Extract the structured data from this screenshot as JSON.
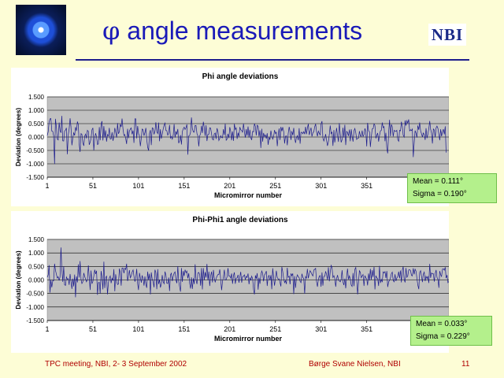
{
  "slide": {
    "title_symbol": "φ",
    "title_text": " angle measurements",
    "logo_text": "NBI",
    "footer_left": "TPC meeting, NBI, 2- 3 September 2002",
    "footer_center": "Børge Svane Nielsen, NBI",
    "footer_right": "11"
  },
  "colors": {
    "background": "#fdfdd6",
    "title": "#1a1ab8",
    "plot_area": "#c0c0c0",
    "series_line": "#1a1a8c",
    "stats_box": "#b4f08c",
    "footer_text": "#b00000"
  },
  "chart_data": [
    {
      "type": "line",
      "title": "Phi angle deviations",
      "xlabel": "Micromirror number",
      "ylabel": "Deviation (degrees)",
      "ylim": [
        -1.5,
        1.5
      ],
      "yticks": [
        1.5,
        1.0,
        0.5,
        0.0,
        -0.5,
        -1.0,
        -1.5
      ],
      "ytick_labels": [
        "1.500",
        "1.000",
        "0.500",
        "0.000",
        "-0.500",
        "-1.000",
        "-1.500"
      ],
      "xticks": [
        1,
        51,
        101,
        151,
        201,
        251,
        301,
        351
      ],
      "xtick_labels": [
        "1",
        "51",
        "101",
        "151",
        "201",
        "251",
        "301",
        "351"
      ],
      "xlim": [
        1,
        441
      ],
      "grid": true,
      "stats": [
        "Mean = 0.111°",
        "Sigma = 0.190°"
      ],
      "series": [
        {
          "values": [
            0.05,
            0.2,
            0.55,
            0.68,
            0.69,
            0.22,
            0.21,
            0.05,
            -1.01,
            0.68,
            0.38,
            -0.08,
            -0.11,
            0.54,
            0.24,
            0.16,
            0.79,
            -0.14,
            -0.15,
            0.22,
            0.26,
            0.34,
            -0.64,
            0.09,
            0.3,
            0.7,
            0.39,
            -0.31,
            -0.02,
            0.16,
            0.06,
            0.37,
            0.23,
            0.58,
            0.47,
            -0.28,
            -0.56,
            0.13,
            0.1,
            -0.22,
            -0.33,
            0.03,
            0.11,
            -0.05,
            0.25,
            0.21,
            -0.29,
            -0.19,
            -0.06,
            0.27,
            0.34,
            -0.5,
            -0.03,
            0.14,
            0.01,
            -0.28,
            -0.26,
            0.37,
            -0.12,
            0.48,
            0.59,
            -0.13,
            0.41,
            -0.02,
            0.25,
            -0.17,
            0.09,
            0.04,
            0.34,
            -0.07,
            -0.07,
            0.18,
            -0.14,
            0.03,
            0.34,
            0.18,
            -0.02,
            0.52,
            0.12,
            0.2,
            0.48,
            0.38,
            0.69,
            0.3,
            0.06,
            0.09,
            -0.07,
            -0.26,
            0.31,
            -0.04,
            0.22,
            0.3,
            0.34,
            0.1,
            0.24,
            -0.22,
            0.68,
            0.68,
            -0.05,
            0.41,
            0.13,
            0.04,
            -0.34,
            -0.06,
            0.3,
            0.27,
            0.05,
            0.16,
            0.34,
            -0.08,
            -0.38,
            -0.51,
            0.12,
            0.26,
            -0.3,
            0.34,
            0.32,
            0.1,
            0.23,
            0.55,
            0.19,
            0.13,
            0.54,
            -0.16,
            0.29,
            -0.06,
            0.1,
            0.29,
            0.44,
            0.52,
            0.24,
            0.24,
            0.07,
            0.14,
            0.45,
            -0.04,
            0.02,
            -0.08,
            0.08,
            0.48,
            -0.02,
            0.2,
            0.11,
            0.3,
            -0.23,
            -0.14,
            0.07,
            -0.28,
            0.2,
            0.31,
            0.37,
            0.28,
            0.35,
            0.47,
            -0.66,
            0.04,
            0.06,
            0.18,
            0.73,
            0.31,
            0.19,
            0.18,
            0.43,
            0.43,
            0.13,
            0.04,
            -0.35,
            0.04,
            0.13,
            0.42,
            0.15,
            0.57,
            0.35,
            0.04,
            0.44,
            -0.15,
            0.09,
            0.11,
            0.34,
            0.33,
            0.12,
            -0.08,
            -0.11,
            0.12,
            0.15,
            -0.07,
            0.33,
            0.2,
            -0.13,
            -0.05,
            0.05,
            -0.02,
            -0.03,
            0.29,
            0.07,
            0.5,
            -0.12,
            -0.08,
            0.12,
            -0.04,
            0.37,
            0.21,
            -0.12,
            0.21,
            -0.14,
            0.49,
            0.28,
            0.34,
            -0.07,
            0.16,
            0.01,
            0.37,
            0.27,
            0.25,
            0.17,
            0.5,
            0.21,
            -0.02,
            0.29,
            0.05,
            0.39,
            -0.02,
            0.27,
            -0.03,
            -0.11,
            0.21,
            0.19,
            0.5,
            0.39,
            0.06,
            0.44,
            0.4,
            0.02,
            0.25,
            -0.41,
            0.31,
            -0.17,
            0.15,
            0.02,
            0.08,
            -0.06,
            0.14,
            -0.29,
            -0.01,
            -0.1,
            0.24,
            0.04,
            -0.08,
            0.02,
            0.26,
            0.13,
            0.18,
            -0.34,
            0.05,
            0.32,
            -0.11,
            0.38,
            0.22,
            0.37,
            0.21,
            -0.24,
            0.03,
            0.04,
            -0.31,
            0.13,
            0.38,
            0.2,
            -0.11,
            0.22,
            0.07,
            0.34,
            -0.02,
            -0.22,
            -0.02,
            0.05,
            -0.12,
            0.33,
            -0.25,
            0.17,
            0.18,
            0.12,
            0.2,
            0.11,
            0.38,
            0.11,
            0.33,
            0.49,
            0.08,
            0.21,
            0.35,
            0.02,
            0.16,
            0.2,
            0.38,
            0.49,
            0.21,
            0.03,
            0.22,
            0.14,
            0.08,
            0.49,
            0.59,
            -0.03,
            -0.15,
            -0.04,
            0.11,
            -0.12,
            -0.33,
            -0.18,
            0.1,
            0.43,
            0.13,
            0.18,
            -0.33,
            0.26,
            -0.2,
            0.08,
            0.34,
            0.06,
            -0.18,
            0.52,
            0.11,
            -0.2,
            -0.1,
            0.35,
            -0.02,
            0.46,
            -0.3,
            0.21,
            0.17,
            0.04,
            0.28,
            -0.16,
            0.29,
            0.03,
            -0.17,
            0.23,
            0.32,
            0.16,
            -0.09,
            -0.05,
            -0.04,
            0.22,
            0.04,
            0.02,
            0.24,
            0.02,
            0.09,
            0.32,
            0.21,
            -0.35,
            0.53,
            0.24,
            0.19,
            -0.37,
            0.01,
            0.3,
            0.31,
            0.49,
            0.43,
            -0.05,
            0.06,
            0.15,
            -0.17,
            0.06,
            0.23,
            0.25,
            0.54,
            0.35,
            0.39,
            -0.16,
            0.16,
            -0.43,
            -0.61,
            0.16,
            0.64,
            0.03,
            0.47,
            0.38,
            0.02,
            0.25,
            0.22,
            0.21,
            0.25,
            -0.1,
            -0.16,
            0.25,
            0.23,
            0.57,
            0.39,
            0.07,
            0.0,
            0.62,
            0.43,
            0.61,
            0.52,
            0.66,
            0.23,
            0.27,
            0.24,
            0.3,
            -0.75,
            -0.2,
            0.24,
            0.14,
            -0.02,
            0.43,
            0.27,
            0.54,
            0.23,
            0.13,
            0.0,
            0.15,
            0.1,
            -0.11,
            0.33,
            -0.04,
            0.1,
            0.31,
            0.6,
            0.29,
            0.15,
            -0.24,
            0.3,
            0.26,
            -0.01,
            0.34,
            0.41,
            0.32,
            0.1,
            -0.12,
            0.29,
            0.03,
            0.19,
            0.29,
            0.1,
            0.4,
            -0.58
          ]
        }
      ]
    },
    {
      "type": "line",
      "title": "Phi-Phi1 angle deviations",
      "xlabel": "Micromirror number",
      "ylabel": "Deviation (degrees)",
      "ylim": [
        -1.5,
        1.5
      ],
      "yticks": [
        1.5,
        1.0,
        0.5,
        0.0,
        -0.5,
        -1.0,
        -1.5
      ],
      "ytick_labels": [
        "1.500",
        "1.000",
        "0.500",
        "0.000",
        "-0.500",
        "-1.000",
        "-1.500"
      ],
      "xticks": [
        1,
        51,
        101,
        151,
        201,
        251,
        301,
        351
      ],
      "xtick_labels": [
        "1",
        "51",
        "101",
        "151",
        "201",
        "251",
        "301",
        "351"
      ],
      "xlim": [
        1,
        441
      ],
      "grid": true,
      "stats": [
        "Mean = 0.033°",
        "Sigma = 0.229°"
      ],
      "series": [
        {
          "values": [
            0.1,
            0.19,
            0.55,
            -0.47,
            0.0,
            -0.27,
            -0.02,
            -0.03,
            0.6,
            0.36,
            0.21,
            0.07,
            0.12,
            -0.02,
            0.11,
            1.2,
            0.41,
            -0.07,
            0.51,
            -0.18,
            -0.2,
            0.11,
            0.03,
            0.05,
            -0.18,
            0.22,
            -0.03,
            -0.33,
            0.05,
            -0.24,
            0.2,
            -0.64,
            0.13,
            -0.09,
            0.58,
            0.09,
            0.7,
            0.02,
            -0.13,
            -0.07,
            0.26,
            0.13,
            0.03,
            -0.07,
            0.01,
            0.54,
            0.12,
            -0.37,
            0.35,
            -0.14,
            -0.05,
            0.14,
            0.38,
            0.22,
            0.34,
            -0.55,
            -0.1,
            -0.09,
            -0.5,
            0.33,
            0.11,
            -0.35,
            0.68,
            -0.3,
            0.09,
            0.14,
            -0.53,
            -0.09,
            0.07,
            0.15,
            -0.12,
            0.06,
            -0.03,
            0.4,
            -0.42,
            0.21,
            -0.05,
            -0.17,
            -0.15,
            0.42,
            0.26,
            -0.21,
            0.44,
            0.44,
            0.25,
            0.43,
            0.39,
            0.6,
            -0.04,
            0.16,
            0.36,
            0.08,
            0.15,
            0.29,
            0.37,
            0.14,
            -0.06,
            0.05,
            0.41,
            -0.14,
            -0.37,
            0.26,
            0.09,
            -0.1,
            0.17,
            0.04,
            -0.21,
            0.13,
            -0.15,
            -0.29,
            0.31,
            0.0,
            0.23,
            -0.53,
            0.28,
            0.02,
            -0.07,
            -0.27,
            0.38,
            0.27,
            -0.34,
            0.4,
            -0.15,
            0.01,
            -0.28,
            -0.15,
            0.18,
            -0.07,
            -0.14,
            0.31,
            0.18,
            -0.12,
            -0.13,
            0.09,
            -0.41,
            0.19,
            0.25,
            -0.04,
            0.15,
            0.25,
            0.3,
            0.0,
            -0.12,
            0.51,
            -0.04,
            -0.25,
            -0.43,
            0.44,
            -0.07,
            0.33,
            0.15,
            0.38,
            0.27,
            0.33,
            0.06,
            0.25,
            -0.12,
            -0.32,
            0.1,
            -0.33,
            0.06,
            -0.15,
            0.58,
            0.01,
            -0.15,
            0.26,
            0.28,
            0.21,
            -0.21,
            0.44,
            -0.35,
            0.44,
            -0.01,
            0.29,
            0.09,
            0.59,
            -0.01,
            0.31,
            -0.22,
            0.15,
            0.31,
            -0.09,
            0.37,
            0.07,
            -0.09,
            0.05,
            0.14,
            0.2,
            0.2,
            0.39,
            0.03,
            -0.38,
            -0.06,
            0.11,
            0.38,
            0.0,
            0.01,
            0.12,
            0.44,
            0.14,
            0.15,
            0.06,
            0.24,
            -0.14,
            0.16,
            0.28,
            -0.14,
            0.06,
            0.08,
            0.19,
            -0.1,
            0.12,
            0.3,
            -0.1,
            0.12,
            0.14,
            0.19,
            0.01,
            0.14,
            0.09,
            0.24,
            -0.16,
            0.09,
            -0.02,
            0.14,
            0.04,
            -0.36,
            -0.53,
            0.17,
            0.05,
            0.25,
            -0.36,
            0.08,
            -0.14,
            0.17,
            0.33,
            0.24,
            -0.05,
            0.19,
            0.24,
            0.33,
            -0.22,
            0.12,
            0.17,
            -0.01,
            0.18,
            -0.34,
            0.43,
            0.08,
            -0.21,
            0.06,
            0.34,
            0.09,
            0.03,
            0.04,
            -0.1,
            -0.24,
            0.48,
            0.31,
            0.05,
            -0.1,
            -0.03,
            -0.15,
            0.45,
            0.1,
            0.14,
            -0.16,
            0.24,
            0.16,
            0.24,
            -0.52,
            0.14,
            -0.29,
            0.06,
            0.19,
            0.12,
            0.08,
            -0.05,
            -0.1,
            0.23,
            0.1,
            0.05,
            -0.51,
            0.13,
            0.06,
            0.41,
            0.06,
            0.24,
            0.34,
            0.28,
            0.2,
            0.15,
            0.37,
            0.39,
            0.43,
            -0.05,
            -0.25,
            0.02,
            0.14,
            0.16,
            -0.25,
            0.28,
            -0.21,
            0.13,
            0.14,
            0.32,
            0.2,
            -0.0,
            0.47,
            -0.05,
            0.29,
            0.54,
            0.46,
            0.09,
            0.16,
            0.06,
            -0.25,
            0.04,
            0.18,
            0.0,
            -0.04,
            -0.07,
            0.02,
            0.36,
            -0.07,
            -0.19,
            0.05,
            -0.31,
            0.13,
            0.42,
            0.02,
            0.15,
            0.03,
            -0.19,
            -0.24,
            0.26,
            -0.23,
            0.39,
            0.46,
            0.06,
            -0.53,
            -0.06,
            0.34,
            0.28,
            0.08,
            0.15,
            0.2,
            -0.22,
            0.16,
            0.08,
            0.04,
            -0.2,
            0.24,
            -0.02,
            0.41,
            0.01,
            0.36,
            0.11,
            0.48,
            -0.35,
            0.16,
            0.08,
            0.05,
            -0.22,
            0.52,
            -0.11,
            0.02,
            -0.08,
            0.3,
            0.26,
            0.31,
            0.07,
            0.33,
            -0.26,
            -0.07,
            -0.01,
            0.07,
            0.23,
            0.29,
            -0.02,
            -0.07,
            0.21,
            -0.04,
            0.07,
            0.13,
            0.31,
            0.06,
            0.35,
            -0.09,
            0.37,
            0.49,
            0.02,
            -0.09,
            0.44,
            0.1,
            0.15,
            0.37,
            0.38,
            0.35,
            0.17,
            0.15,
            0.43,
            0.21,
            0.4,
            0.32,
            0.06,
            -0.19,
            -0.34,
            0.27,
            0.34,
            0.15,
            -0.08,
            0.21,
            0.29,
            -0.04,
            0.13,
            0.05,
            0.14,
            -0.11,
            0.59,
            0.08,
            0.26,
            0.22,
            0.23,
            -0.06,
            0.23,
            0.37,
            0.1,
            0.02,
            -0.29,
            0.33,
            0.19,
            0.13,
            0.4,
            0.41,
            0.36,
            0.47,
            0.07,
            0.18,
            -0.1,
            -0.05,
            -0.16,
            0.49,
            -0.14,
            0.26,
            0.38
          ]
        }
      ]
    }
  ]
}
